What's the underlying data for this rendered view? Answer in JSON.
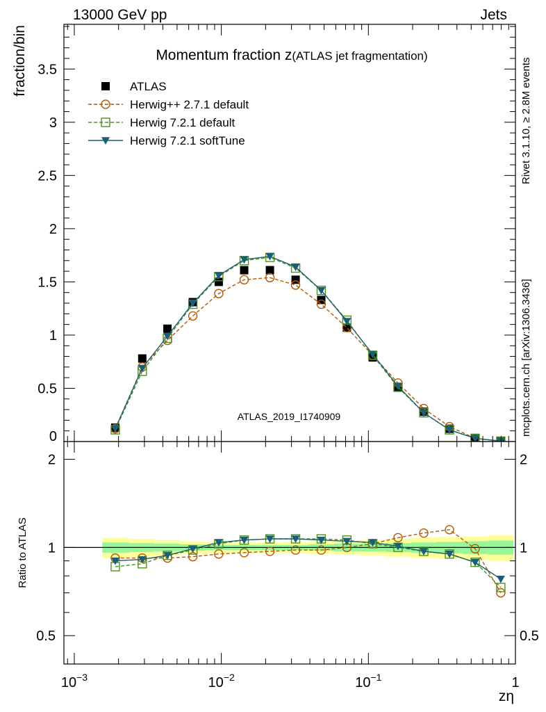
{
  "header": {
    "left": "13000 GeV pp",
    "right": "Jets"
  },
  "title": {
    "main": "Momentum fraction z",
    "sub": "(ATLAS jet fragmentation)"
  },
  "side_labels": {
    "rivet": "Rivet 3.1.10, ≥ 2.8M events",
    "mcplots": "mcplots.cern.ch [arXiv:1306.3436]"
  },
  "watermark": "ATLAS_2019_I1740909",
  "chart_data": {
    "type": "line",
    "title": "Momentum fraction z(ATLAS jet fragmentation)",
    "xlabel": "zη",
    "ylabel": "fraction/bin",
    "ratio_ylabel": "Ratio to ATLAS",
    "xscale": "log",
    "xlim": [
      0.00085,
      1.0
    ],
    "ylim": [
      0,
      3.92
    ],
    "ratio_ylim": [
      0.4,
      2.3
    ],
    "x_ticks": [
      {
        "value": 0.001,
        "base": "10",
        "exp": "−3"
      },
      {
        "value": 0.01,
        "base": "10",
        "exp": "−2"
      },
      {
        "value": 0.1,
        "base": "10",
        "exp": "−1"
      },
      {
        "value": 1,
        "base": "1",
        "exp": ""
      }
    ],
    "y_ticks": [
      "0",
      "0.5",
      "1",
      "1.5",
      "2",
      "2.5",
      "3",
      "3.5"
    ],
    "ratio_ticks": [
      "0.5",
      "1",
      "2"
    ],
    "grid": false,
    "legend_position": "top-left",
    "x": [
      0.0019,
      0.0029,
      0.0043,
      0.0064,
      0.0096,
      0.0143,
      0.0214,
      0.032,
      0.0478,
      0.0714,
      0.107,
      0.159,
      0.238,
      0.356,
      0.532,
      0.795
    ],
    "bin_edges": [
      0.00155,
      0.00235,
      0.0035,
      0.0052,
      0.0078,
      0.0117,
      0.0175,
      0.0262,
      0.0391,
      0.0584,
      0.0873,
      0.13,
      0.195,
      0.291,
      0.435,
      0.65,
      0.97
    ],
    "band_inner": [
      0.04,
      0.035,
      0.03,
      0.025,
      0.02,
      0.02,
      0.02,
      0.02,
      0.025,
      0.03,
      0.03,
      0.035,
      0.04,
      0.045,
      0.05,
      0.055
    ],
    "band_outer": [
      0.08,
      0.07,
      0.06,
      0.05,
      0.045,
      0.04,
      0.04,
      0.045,
      0.05,
      0.055,
      0.06,
      0.07,
      0.08,
      0.085,
      0.09,
      0.1
    ],
    "series": [
      {
        "name": "ATLAS",
        "color": "#000000",
        "marker": "filled-square",
        "values": [
          0.13,
          0.78,
          1.06,
          1.31,
          1.5,
          1.61,
          1.61,
          1.52,
          1.33,
          1.07,
          0.79,
          0.51,
          0.28,
          0.12,
          0.03,
          0.005
        ],
        "ratio": [
          1,
          1,
          1,
          1,
          1,
          1,
          1,
          1,
          1,
          1,
          1,
          1,
          1,
          1,
          1,
          1
        ]
      },
      {
        "name": "Herwig++ 2.7.1 default",
        "color": "#b35806",
        "marker": "open-circle",
        "dash": true,
        "values": [
          0.12,
          0.7,
          0.95,
          1.18,
          1.39,
          1.52,
          1.54,
          1.47,
          1.29,
          1.07,
          0.81,
          0.55,
          0.31,
          0.14,
          0.03,
          0.003
        ],
        "ratio": [
          0.92,
          0.92,
          0.92,
          0.93,
          0.95,
          0.96,
          0.97,
          0.98,
          0.98,
          1.0,
          1.03,
          1.08,
          1.12,
          1.15,
          0.99,
          0.7
        ]
      },
      {
        "name": "Herwig 7.2.1 default",
        "color": "#4d9221",
        "marker": "open-square",
        "dash": true,
        "values": [
          0.11,
          0.66,
          0.97,
          1.29,
          1.55,
          1.7,
          1.73,
          1.63,
          1.42,
          1.14,
          0.81,
          0.51,
          0.27,
          0.11,
          0.03,
          0.004
        ],
        "ratio": [
          0.86,
          0.88,
          0.94,
          0.98,
          1.03,
          1.06,
          1.07,
          1.07,
          1.07,
          1.06,
          1.03,
          1.0,
          0.97,
          0.95,
          0.89,
          0.73
        ]
      },
      {
        "name": "Herwig 7.2.1 softTune",
        "color": "#1b5e75",
        "marker": "filled-triangle-down",
        "dash": false,
        "values": [
          0.12,
          0.69,
          0.99,
          1.3,
          1.56,
          1.71,
          1.74,
          1.64,
          1.42,
          1.13,
          0.82,
          0.52,
          0.27,
          0.11,
          0.03,
          0.004
        ],
        "ratio": [
          0.9,
          0.91,
          0.94,
          0.99,
          1.04,
          1.06,
          1.07,
          1.07,
          1.06,
          1.05,
          1.04,
          1.01,
          0.97,
          0.95,
          0.89,
          0.78
        ]
      }
    ]
  }
}
